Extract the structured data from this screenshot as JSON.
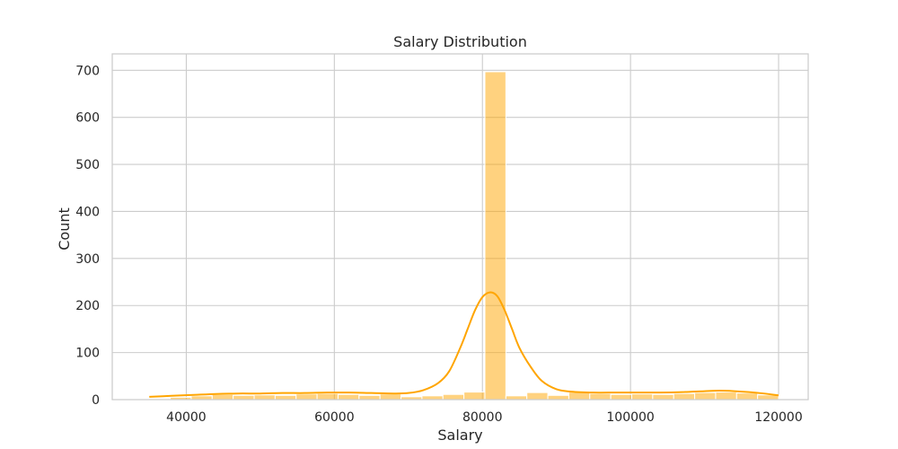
{
  "chart_data": {
    "type": "bar",
    "title": "Salary Distribution",
    "xlabel": "Salary",
    "ylabel": "Count",
    "xlim": [
      30000,
      124000
    ],
    "ylim": [
      0,
      735
    ],
    "x_ticks": [
      40000,
      60000,
      80000,
      100000,
      120000
    ],
    "y_ticks": [
      0,
      100,
      200,
      300,
      400,
      500,
      600,
      700
    ],
    "grid": true,
    "legend": "none",
    "bar_color": "#ffa500",
    "bar_alpha": 0.5,
    "kde_color": "#ffa500",
    "bin_edges": [
      35000,
      37833,
      40667,
      43500,
      46333,
      49167,
      52000,
      54833,
      57667,
      60500,
      63333,
      66167,
      69000,
      71833,
      74667,
      77500,
      80333,
      83167,
      86000,
      88833,
      91667,
      94500,
      97333,
      100167,
      103000,
      105833,
      108667,
      111500,
      114333,
      117167,
      120000
    ],
    "counts": [
      2,
      5,
      8,
      11,
      9,
      10,
      9,
      12,
      13,
      11,
      9,
      12,
      6,
      8,
      11,
      16,
      697,
      8,
      15,
      9,
      16,
      13,
      11,
      12,
      11,
      13,
      15,
      16,
      14,
      10
    ],
    "kde": {
      "x": [
        35000,
        38000,
        41000,
        44000,
        47000,
        50000,
        53000,
        56000,
        59000,
        62000,
        65000,
        68000,
        70000,
        72000,
        74000,
        75500,
        77000,
        78000,
        79000,
        80000,
        81000,
        82000,
        83000,
        84000,
        85000,
        86500,
        88000,
        90000,
        92000,
        95000,
        98000,
        101000,
        104000,
        107000,
        110000,
        112000,
        114000,
        116000,
        118000,
        120000
      ],
      "y": [
        6,
        8,
        10,
        12,
        13,
        13,
        14,
        14,
        15,
        15,
        14,
        13,
        14,
        20,
        35,
        60,
        110,
        150,
        190,
        218,
        228,
        220,
        190,
        150,
        110,
        70,
        40,
        22,
        17,
        15,
        15,
        15,
        15,
        16,
        18,
        19,
        18,
        16,
        13,
        9
      ]
    }
  }
}
